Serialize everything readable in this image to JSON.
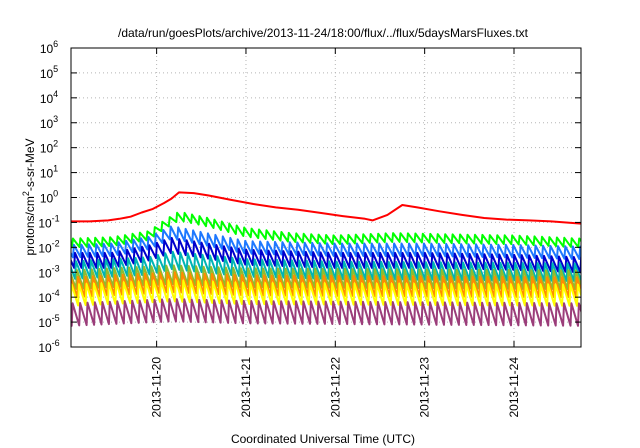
{
  "chart_data": {
    "type": "line",
    "title": "/data/run/goesPlots/archive/2013-11-24/18:00/flux/../flux/5daysMarsFluxes.txt",
    "xlabel": "Coordinated Universal Time (UTC)",
    "ylabel": {
      "prefix": "protons/cm",
      "exponent": "2",
      "suffix": "-s-sr-MeV"
    },
    "y_scale": "log",
    "ylim": [
      1e-06,
      1000000.0
    ],
    "y_ticks": [
      {
        "value": 1e-06,
        "base": "10",
        "exp": "-6"
      },
      {
        "value": 1e-05,
        "base": "10",
        "exp": "-5"
      },
      {
        "value": 0.0001,
        "base": "10",
        "exp": "-4"
      },
      {
        "value": 0.001,
        "base": "10",
        "exp": "-3"
      },
      {
        "value": 0.01,
        "base": "10",
        "exp": "-2"
      },
      {
        "value": 0.1,
        "base": "10",
        "exp": "-1"
      },
      {
        "value": 1,
        "base": "10",
        "exp": "0"
      },
      {
        "value": 10.0,
        "base": "10",
        "exp": "1"
      },
      {
        "value": 100.0,
        "base": "10",
        "exp": "2"
      },
      {
        "value": 1000.0,
        "base": "10",
        "exp": "3"
      },
      {
        "value": 10000.0,
        "base": "10",
        "exp": "4"
      },
      {
        "value": 100000.0,
        "base": "10",
        "exp": "5"
      },
      {
        "value": 1000000.0,
        "base": "10",
        "exp": "6"
      }
    ],
    "xlim": [
      "2013-11-19T01:00",
      "2013-11-24T18:00"
    ],
    "x_ticks": [
      {
        "value": "2013-11-20",
        "label": "2013-11-20"
      },
      {
        "value": "2013-11-21",
        "label": "2013-11-21"
      },
      {
        "value": "2013-11-22",
        "label": "2013-11-22"
      },
      {
        "value": "2013-11-23",
        "label": "2013-11-23"
      },
      {
        "value": "2013-11-24",
        "label": "2013-11-24"
      }
    ],
    "grid": true,
    "sawtooth_period_hours": 2,
    "series": [
      {
        "color": "#ff0000",
        "sawtooth": false,
        "points": [
          [
            "2013-11-19T01:00",
            0.11
          ],
          [
            "2013-11-19T06:00",
            0.11
          ],
          [
            "2013-11-19T11:00",
            0.12
          ],
          [
            "2013-11-19T14:00",
            0.14
          ],
          [
            "2013-11-19T17:00",
            0.17
          ],
          [
            "2013-11-19T20:00",
            0.25
          ],
          [
            "2013-11-19T23:00",
            0.35
          ],
          [
            "2013-11-20T02:00",
            0.6
          ],
          [
            "2013-11-20T04:00",
            0.9
          ],
          [
            "2013-11-20T06:00",
            1.6
          ],
          [
            "2013-11-20T10:00",
            1.5
          ],
          [
            "2013-11-20T14:00",
            1.2
          ],
          [
            "2013-11-20T20:00",
            0.8
          ],
          [
            "2013-11-21T02:00",
            0.55
          ],
          [
            "2013-11-21T08:00",
            0.4
          ],
          [
            "2013-11-21T14:00",
            0.32
          ],
          [
            "2013-11-21T20:00",
            0.24
          ],
          [
            "2013-11-22T02:00",
            0.18
          ],
          [
            "2013-11-22T08:00",
            0.14
          ],
          [
            "2013-11-22T10:00",
            0.12
          ],
          [
            "2013-11-22T14:00",
            0.2
          ],
          [
            "2013-11-22T18:00",
            0.5
          ],
          [
            "2013-11-22T22:00",
            0.4
          ],
          [
            "2013-11-23T04:00",
            0.28
          ],
          [
            "2013-11-23T10:00",
            0.2
          ],
          [
            "2013-11-23T16:00",
            0.15
          ],
          [
            "2013-11-23T22:00",
            0.13
          ],
          [
            "2013-11-24T04:00",
            0.12
          ],
          [
            "2013-11-24T10:00",
            0.11
          ],
          [
            "2013-11-24T18:00",
            0.09
          ]
        ]
      },
      {
        "color": "#00ff00",
        "sawtooth": true,
        "amplitude_decades": 0.35,
        "points": [
          [
            "2013-11-19T01:00",
            0.015
          ],
          [
            "2013-11-19T12:00",
            0.017
          ],
          [
            "2013-11-19T22:00",
            0.03
          ],
          [
            "2013-11-20T02:00",
            0.08
          ],
          [
            "2013-11-20T06:00",
            0.18
          ],
          [
            "2013-11-20T14:00",
            0.1
          ],
          [
            "2013-11-21T00:00",
            0.04
          ],
          [
            "2013-11-21T12:00",
            0.025
          ],
          [
            "2013-11-22T00:00",
            0.02
          ],
          [
            "2013-11-22T16:00",
            0.025
          ],
          [
            "2013-11-23T08:00",
            0.022
          ],
          [
            "2013-11-24T00:00",
            0.02
          ],
          [
            "2013-11-24T18:00",
            0.015
          ]
        ]
      },
      {
        "color": "#1e78ff",
        "sawtooth": true,
        "amplitude_decades": 0.5,
        "points": [
          [
            "2013-11-19T01:00",
            0.007
          ],
          [
            "2013-11-19T12:00",
            0.008
          ],
          [
            "2013-11-19T22:00",
            0.015
          ],
          [
            "2013-11-20T04:00",
            0.04
          ],
          [
            "2013-11-20T14:00",
            0.02
          ],
          [
            "2013-11-21T00:00",
            0.01
          ],
          [
            "2013-11-22T00:00",
            0.008
          ],
          [
            "2013-11-23T00:00",
            0.008
          ],
          [
            "2013-11-24T00:00",
            0.007
          ],
          [
            "2013-11-24T18:00",
            0.006
          ]
        ]
      },
      {
        "color": "#0000cc",
        "sawtooth": true,
        "amplitude_decades": 0.6,
        "points": [
          [
            "2013-11-19T01:00",
            0.003
          ],
          [
            "2013-11-19T12:00",
            0.003
          ],
          [
            "2013-11-19T22:00",
            0.006
          ],
          [
            "2013-11-20T04:00",
            0.012
          ],
          [
            "2013-11-20T14:00",
            0.007
          ],
          [
            "2013-11-21T00:00",
            0.004
          ],
          [
            "2013-11-22T00:00",
            0.003
          ],
          [
            "2013-11-23T00:00",
            0.003
          ],
          [
            "2013-11-24T00:00",
            0.0025
          ],
          [
            "2013-11-24T18:00",
            0.002
          ]
        ]
      },
      {
        "color": "#00b4b4",
        "sawtooth": true,
        "amplitude_decades": 0.7,
        "points": [
          [
            "2013-11-19T01:00",
            0.0012
          ],
          [
            "2013-11-19T22:00",
            0.0018
          ],
          [
            "2013-11-20T04:00",
            0.003
          ],
          [
            "2013-11-21T00:00",
            0.0015
          ],
          [
            "2013-11-22T00:00",
            0.0012
          ],
          [
            "2013-11-24T18:00",
            0.001
          ]
        ]
      },
      {
        "color": "#8fbc2f",
        "sawtooth": true,
        "amplitude_decades": 0.75,
        "points": [
          [
            "2013-11-19T01:00",
            0.0005
          ],
          [
            "2013-11-20T04:00",
            0.0008
          ],
          [
            "2013-11-21T00:00",
            0.0006
          ],
          [
            "2013-11-24T18:00",
            0.0005
          ]
        ]
      },
      {
        "color": "#ff8c00",
        "sawtooth": true,
        "amplitude_decades": 0.8,
        "points": [
          [
            "2013-11-19T01:00",
            0.00025
          ],
          [
            "2013-11-20T04:00",
            0.0004
          ],
          [
            "2013-11-21T00:00",
            0.0003
          ],
          [
            "2013-11-24T18:00",
            0.00025
          ]
        ]
      },
      {
        "color": "#ffff00",
        "sawtooth": true,
        "amplitude_decades": 0.85,
        "points": [
          [
            "2013-11-19T01:00",
            0.00012
          ],
          [
            "2013-11-20T04:00",
            0.00018
          ],
          [
            "2013-11-21T00:00",
            0.00014
          ],
          [
            "2013-11-24T18:00",
            0.00012
          ]
        ]
      },
      {
        "color": "#9b3d7a",
        "sawtooth": true,
        "amplitude_decades": 0.9,
        "points": [
          [
            "2013-11-19T01:00",
            2e-05
          ],
          [
            "2013-11-20T04:00",
            3e-05
          ],
          [
            "2013-11-21T00:00",
            2.5e-05
          ],
          [
            "2013-11-24T18:00",
            2e-05
          ]
        ]
      }
    ]
  }
}
